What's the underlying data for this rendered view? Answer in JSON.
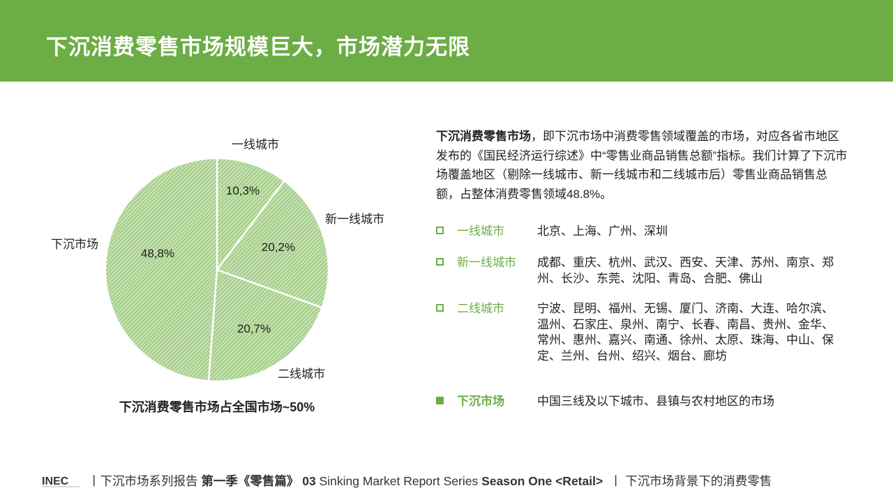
{
  "header": {
    "title": "下沉消费零售市场规模巨大，市场潜力无限"
  },
  "chart_data": {
    "type": "pie",
    "categories": [
      "一线城市",
      "新一线城市",
      "二线城市",
      "下沉市场"
    ],
    "values": [
      10.3,
      20.2,
      20.7,
      48.8
    ],
    "value_labels": [
      "10,3%",
      "20,2%",
      "20,7%",
      "48,8%"
    ],
    "caption": "下沉消费零售市场占全国市场~50%",
    "colors": {
      "fill": "#a9d18e",
      "hatch": "#ffffff",
      "separator": "#ffffff"
    }
  },
  "description": {
    "bold_lead": "下沉消费零售市场",
    "text": "，即下沉市场中消费零售领域覆盖的市场，对应各省市地区发布的《国民经济运行综述》中“零售业商品销售总额”指标。我们计算了下沉市场覆盖地区（剔除一线城市、新一线城市和二线城市后）零售业商品销售总额，占整体消费零售领域48.8%。"
  },
  "legend": [
    {
      "name": "一线城市",
      "cities": "北京、上海、广州、深圳"
    },
    {
      "name": "新一线城市",
      "cities": "成都、重庆、杭州、武汉、西安、天津、苏州、南京、郑州、长沙、东莞、沈阳、青岛、合肥、佛山"
    },
    {
      "name": "二线城市",
      "cities": "宁波、昆明、福州、无锡、厦门、济南、大连、哈尔滨、温州、石家庄、泉州、南宁、长春、南昌、贵州、金华、常州、惠州、嘉兴、南通、徐州、太原、珠海、中山、保定、兰州、台州、绍兴、烟台、廊坊"
    },
    {
      "name": "下沉市场",
      "cities": "中国三线及以下城市、县镇与农村地区的市场"
    }
  ],
  "footer": {
    "logo_text": "INEC",
    "sep1": "丨",
    "series_cn": "下沉市场系列报告",
    "season_cn": "第一季《零售篇》",
    "number": "03",
    "series_en": "Sinking Market Report Series",
    "season_en": "Season One <Retail>",
    "sep2": "丨",
    "subtitle": "下沉市场背景下的消费零售"
  },
  "colors": {
    "accent": "#6cad45",
    "header_bg": "#6cad45"
  }
}
